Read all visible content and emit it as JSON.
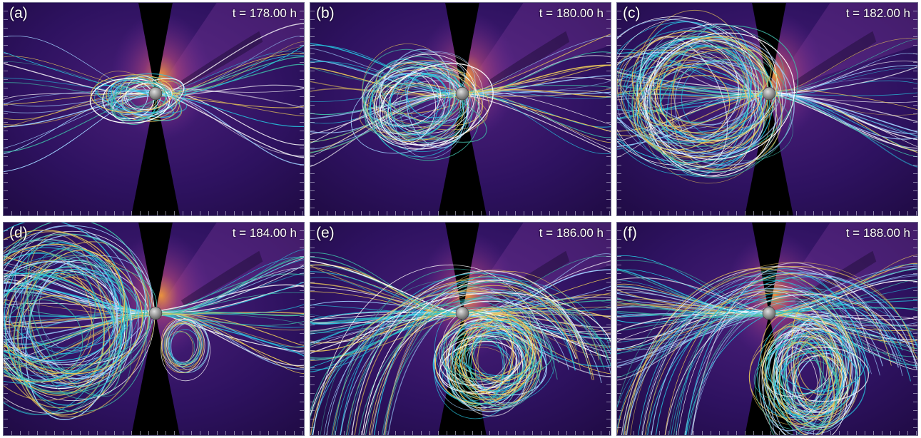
{
  "panels": [
    {
      "id": "a",
      "label": "(a)",
      "time": "t = 178.00 h"
    },
    {
      "id": "b",
      "label": "(b)",
      "time": "t = 180.00 h"
    },
    {
      "id": "c",
      "label": "(c)",
      "time": "t = 182.00 h"
    },
    {
      "id": "d",
      "label": "(d)",
      "time": "t = 184.00 h"
    },
    {
      "id": "e",
      "label": "(e)",
      "time": "t = 186.00 h"
    },
    {
      "id": "f",
      "label": "(f)",
      "time": "t = 188.00 h"
    }
  ],
  "colors": {
    "background": "#2a1155",
    "corona_glow": "#f39a3a",
    "occulter": "#000000",
    "sun": "#9a9a9a",
    "field_lines": [
      "#ffffff",
      "#27c6e0",
      "#e8c65a",
      "#3fb9a6",
      "#9fd0ff"
    ]
  }
}
